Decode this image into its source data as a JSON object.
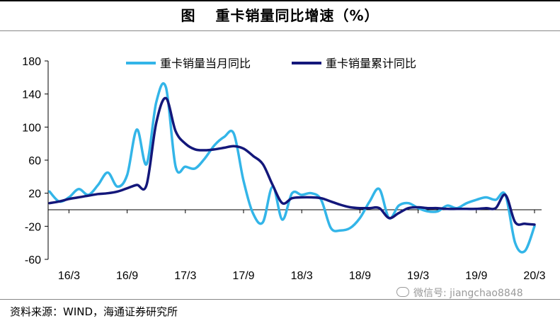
{
  "header": {
    "label": "图",
    "title": "重卡销量同比增速（%）"
  },
  "footer": {
    "source": "资料来源：WIND，海通证券研究所",
    "watermark": "微信号: jiangchao8848"
  },
  "chart_data": {
    "type": "line",
    "title": "重卡销量同比增速（%）",
    "ylim": [
      -60,
      180
    ],
    "yticks": [
      -60,
      -20,
      20,
      60,
      100,
      140,
      180
    ],
    "ytick_labels": [
      "-60",
      "-20",
      "20",
      "60",
      "100",
      "140",
      "180"
    ],
    "x": [
      "16/1",
      "16/2",
      "16/3",
      "16/4",
      "16/5",
      "16/6",
      "16/7",
      "16/8",
      "16/9",
      "16/10",
      "16/11",
      "16/12",
      "17/1",
      "17/2",
      "17/3",
      "17/4",
      "17/5",
      "17/6",
      "17/7",
      "17/8",
      "17/9",
      "17/10",
      "17/11",
      "17/12",
      "18/1",
      "18/2",
      "18/3",
      "18/4",
      "18/5",
      "18/6",
      "18/7",
      "18/8",
      "18/9",
      "18/10",
      "18/11",
      "18/12",
      "19/1",
      "19/2",
      "19/3",
      "19/4",
      "19/5",
      "19/6",
      "19/7",
      "19/8",
      "19/9",
      "19/10",
      "19/11",
      "19/12",
      "20/1",
      "20/2",
      "20/3"
    ],
    "xtick_labels": [
      {
        "at": "16/3",
        "label": "16/3"
      },
      {
        "at": "16/9",
        "label": "16/9"
      },
      {
        "at": "17/3",
        "label": "17/3"
      },
      {
        "at": "17/9",
        "label": "17/9"
      },
      {
        "at": "18/3",
        "label": "18/3"
      },
      {
        "at": "18/9",
        "label": "18/9"
      },
      {
        "at": "19/3",
        "label": "19/3"
      },
      {
        "at": "19/9",
        "label": "19/9"
      },
      {
        "at": "20/3",
        "label": "20/3"
      }
    ],
    "series": [
      {
        "name": "重卡销量当月同比",
        "color": "#33b5e8",
        "values": [
          22,
          10,
          15,
          25,
          18,
          30,
          45,
          28,
          42,
          97,
          55,
          130,
          148,
          52,
          52,
          50,
          62,
          78,
          88,
          92,
          35,
          -5,
          -15,
          28,
          -12,
          20,
          18,
          20,
          12,
          -22,
          -25,
          -22,
          -10,
          10,
          25,
          -10,
          5,
          8,
          2,
          -2,
          -2,
          5,
          2,
          8,
          12,
          15,
          12,
          18,
          -40,
          -50,
          -20
        ]
      },
      {
        "name": "重卡销量累计同比",
        "color": "#13177a",
        "values": [
          8,
          10,
          13,
          15,
          17,
          19,
          20,
          22,
          26,
          30,
          30,
          105,
          135,
          95,
          80,
          73,
          72,
          73,
          75,
          77,
          74,
          65,
          55,
          30,
          8,
          14,
          15,
          15,
          14,
          10,
          6,
          3,
          2,
          2,
          2,
          -10,
          -4,
          2,
          3,
          2,
          2,
          1,
          1,
          1,
          1,
          2,
          2,
          18,
          -15,
          -17,
          -18
        ]
      }
    ],
    "legend_position": "top"
  }
}
